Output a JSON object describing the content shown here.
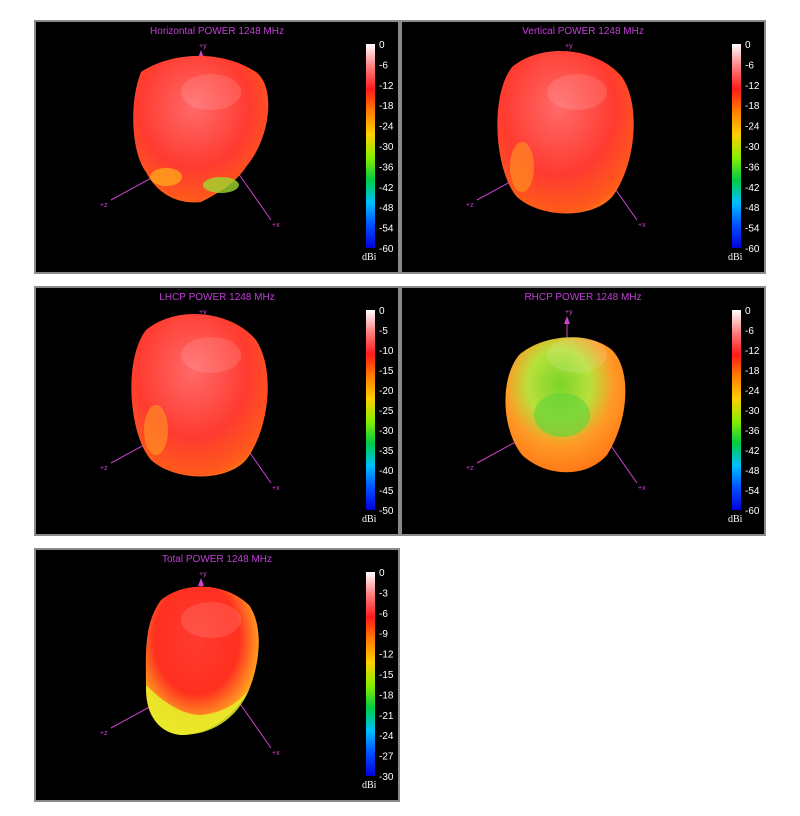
{
  "chart_data": [
    {
      "type": "heatmap",
      "title": "Horizontal POWER 1248  MHz",
      "axes": {
        "y": "+y",
        "z": "+z",
        "x": "+x"
      },
      "colorbar": {
        "unit": "dBi",
        "range": [
          -60,
          0
        ],
        "ticks": [
          "0",
          "-6",
          "-12",
          "-18",
          "-24",
          "-30",
          "-36",
          "-42",
          "-48",
          "-54",
          "-60"
        ]
      },
      "pattern_shape": "tilted-top",
      "dominant_level_dBi": -12
    },
    {
      "type": "heatmap",
      "title": "Vertical POWER 1248  MHz",
      "axes": {
        "y": "+y",
        "z": "+z",
        "x": "+x"
      },
      "colorbar": {
        "unit": "dBi",
        "range": [
          -60,
          0
        ],
        "ticks": [
          "0",
          "-6",
          "-12",
          "-18",
          "-24",
          "-30",
          "-36",
          "-42",
          "-48",
          "-54",
          "-60"
        ]
      },
      "pattern_shape": "round",
      "dominant_level_dBi": -12
    },
    {
      "type": "heatmap",
      "title": "LHCP POWER 1248  MHz",
      "axes": {
        "y": "+y",
        "z": "+z",
        "x": "+x"
      },
      "colorbar": {
        "unit": "dBi",
        "range": [
          -50,
          0
        ],
        "ticks": [
          "0",
          "-5",
          "-10",
          "-15",
          "-20",
          "-25",
          "-30",
          "-35",
          "-40",
          "-45",
          "-50"
        ]
      },
      "pattern_shape": "round",
      "dominant_level_dBi": -10
    },
    {
      "type": "heatmap",
      "title": "RHCP POWER 1248  MHz",
      "axes": {
        "y": "+y",
        "z": "+z",
        "x": "+x"
      },
      "colorbar": {
        "unit": "dBi",
        "range": [
          -60,
          0
        ],
        "ticks": [
          "0",
          "-6",
          "-12",
          "-18",
          "-24",
          "-30",
          "-36",
          "-42",
          "-48",
          "-54",
          "-60"
        ]
      },
      "pattern_shape": "orange-green",
      "dominant_level_dBi": -18
    },
    {
      "type": "heatmap",
      "title": "Total POWER 1248  MHz",
      "axes": {
        "y": "+y",
        "z": "+z",
        "x": "+x"
      },
      "colorbar": {
        "unit": "dBi",
        "range": [
          -30,
          0
        ],
        "ticks": [
          "0",
          "-3",
          "-6",
          "-9",
          "-12",
          "-15",
          "-18",
          "-21",
          "-24",
          "-27",
          "-30"
        ]
      },
      "pattern_shape": "split",
      "dominant_level_dBi": -6
    }
  ],
  "colors": {
    "title": "#c13fd6",
    "axis": "#cc44cc",
    "background": "#000000",
    "border": "#8a8a8a"
  }
}
